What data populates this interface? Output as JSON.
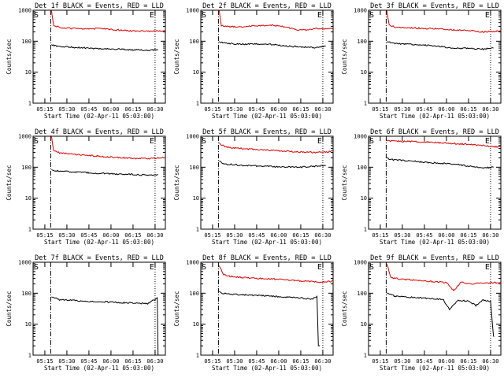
{
  "figure": {
    "y_axis_label": "Counts/sec",
    "x_tick_labels": [
      "05:15",
      "05:30",
      "05:45",
      "06:00",
      "06:15",
      "06:30"
    ],
    "y_tick_labels": [
      "1",
      "10",
      "100",
      "1000"
    ],
    "start_marker": "S",
    "end_marker": "E"
  },
  "colors": {
    "events": "#000000",
    "lld": "#e00000"
  },
  "chart_data": [
    {
      "type": "line",
      "title": "Det 1f BLACK = Events, RED = LLD",
      "xlabel": "Start Time (02-Apr-11 05:03:00)",
      "ylabel": "Counts/sec",
      "y_scale": "log",
      "ylim": [
        1,
        1000
      ],
      "x_range_min": [
        7,
        97
      ],
      "s_min": 19,
      "e_min": 90,
      "series": [
        {
          "name": "Events",
          "color": "#000000",
          "x": [
            19.5,
            25,
            35,
            45,
            55,
            65,
            75,
            85,
            92
          ],
          "y": [
            75,
            68,
            63,
            60,
            57,
            55,
            53,
            51,
            52
          ]
        },
        {
          "name": "LLD",
          "color": "#e00000",
          "x": [
            19.5,
            21,
            25,
            35,
            45,
            55,
            60,
            65,
            75,
            85,
            95,
            97
          ],
          "y": [
            1000,
            330,
            280,
            255,
            250,
            260,
            240,
            230,
            215,
            210,
            215,
            210
          ]
        }
      ]
    },
    {
      "type": "line",
      "title": "Det 2f BLACK = Events, RED = LLD",
      "xlabel": "Start Time (02-Apr-11 05:03:00)",
      "ylabel": "Counts/sec",
      "y_scale": "log",
      "ylim": [
        1,
        1000
      ],
      "x_range_min": [
        7,
        97
      ],
      "s_min": 19,
      "e_min": 90,
      "series": [
        {
          "name": "Events",
          "color": "#000000",
          "x": [
            19.5,
            25,
            35,
            45,
            55,
            65,
            75,
            85,
            92
          ],
          "y": [
            95,
            85,
            80,
            82,
            78,
            70,
            66,
            62,
            70
          ]
        },
        {
          "name": "LLD",
          "color": "#e00000",
          "x": [
            19.5,
            21,
            25,
            35,
            45,
            55,
            65,
            72,
            80,
            85,
            95,
            97
          ],
          "y": [
            1000,
            320,
            300,
            290,
            320,
            330,
            290,
            230,
            230,
            260,
            250,
            260
          ]
        }
      ]
    },
    {
      "type": "line",
      "title": "Det 3f BLACK = Events, RED = LLD",
      "xlabel": "Start Time (02-Apr-11 05:03:00)",
      "ylabel": "Counts/sec",
      "y_scale": "log",
      "ylim": [
        1,
        1000
      ],
      "x_range_min": [
        7,
        97
      ],
      "s_min": 19,
      "e_min": 90,
      "series": [
        {
          "name": "Events",
          "color": "#000000",
          "x": [
            19.5,
            25,
            35,
            45,
            55,
            65,
            75,
            85,
            92
          ],
          "y": [
            95,
            85,
            80,
            75,
            68,
            60,
            58,
            55,
            60
          ]
        },
        {
          "name": "LLD",
          "color": "#e00000",
          "x": [
            19.5,
            21,
            25,
            35,
            45,
            55,
            65,
            75,
            85,
            95,
            97
          ],
          "y": [
            1000,
            330,
            290,
            270,
            260,
            250,
            230,
            220,
            200,
            210,
            215
          ]
        }
      ]
    },
    {
      "type": "line",
      "title": "Det 4f BLACK = Events, RED = LLD",
      "xlabel": "Start Time (02-Apr-11 05:03:00)",
      "ylabel": "Counts/sec",
      "y_scale": "log",
      "ylim": [
        1,
        1000
      ],
      "x_range_min": [
        7,
        97
      ],
      "s_min": 19,
      "e_min": 90,
      "series": [
        {
          "name": "Events",
          "color": "#000000",
          "x": [
            19.5,
            25,
            35,
            45,
            55,
            65,
            75,
            85,
            92
          ],
          "y": [
            80,
            75,
            70,
            66,
            63,
            60,
            58,
            55,
            57
          ]
        },
        {
          "name": "LLD",
          "color": "#e00000",
          "x": [
            19.5,
            21,
            25,
            35,
            45,
            55,
            65,
            75,
            85,
            95,
            97
          ],
          "y": [
            1000,
            340,
            290,
            260,
            240,
            220,
            205,
            195,
            190,
            200,
            205
          ]
        }
      ]
    },
    {
      "type": "line",
      "title": "Det 5f BLACK = Events, RED = LLD",
      "xlabel": "Start Time (02-Apr-11 05:03:00)",
      "ylabel": "Counts/sec",
      "y_scale": "log",
      "ylim": [
        1,
        1000
      ],
      "x_range_min": [
        7,
        97
      ],
      "s_min": 19,
      "e_min": 90,
      "series": [
        {
          "name": "Events",
          "color": "#000000",
          "x": [
            19.5,
            22,
            25,
            35,
            45,
            55,
            65,
            75,
            85,
            92
          ],
          "y": [
            160,
            135,
            125,
            115,
            110,
            105,
            102,
            100,
            108,
            112
          ]
        },
        {
          "name": "LLD",
          "color": "#e00000",
          "x": [
            19.5,
            22,
            25,
            35,
            45,
            55,
            65,
            75,
            85,
            95,
            97
          ],
          "y": [
            600,
            500,
            440,
            400,
            370,
            350,
            330,
            310,
            300,
            320,
            340
          ]
        }
      ]
    },
    {
      "type": "line",
      "title": "Det 6f BLACK = Events, RED = LLD",
      "xlabel": "Start Time (02-Apr-11 05:03:00)",
      "ylabel": "Counts/sec",
      "y_scale": "log",
      "ylim": [
        1,
        1000
      ],
      "x_range_min": [
        7,
        97
      ],
      "s_min": 19,
      "e_min": 90,
      "series": [
        {
          "name": "Events",
          "color": "#000000",
          "x": [
            19.5,
            22,
            25,
            35,
            45,
            55,
            65,
            75,
            85,
            92
          ],
          "y": [
            200,
            180,
            170,
            160,
            145,
            135,
            125,
            110,
            95,
            100
          ]
        },
        {
          "name": "LLD",
          "color": "#e00000",
          "x": [
            19.5,
            22,
            25,
            35,
            45,
            55,
            65,
            75,
            85,
            95,
            97
          ],
          "y": [
            750,
            700,
            690,
            680,
            650,
            620,
            580,
            550,
            500,
            450,
            460
          ]
        }
      ]
    },
    {
      "type": "line",
      "title": "Det 7f BLACK = Events, RED = LLD",
      "xlabel": "Start Time (02-Apr-11 05:03:00)",
      "ylabel": "Counts/sec",
      "y_scale": "log",
      "ylim": [
        1,
        1000
      ],
      "x_range_min": [
        7,
        97
      ],
      "s_min": 19,
      "e_min": 90,
      "series": [
        {
          "name": "Events",
          "color": "#000000",
          "x": [
            19.5,
            25,
            35,
            45,
            55,
            65,
            75,
            85,
            91.5,
            92,
            92.3
          ],
          "y": [
            75,
            62,
            58,
            55,
            53,
            50,
            48,
            46,
            70,
            1,
            1
          ]
        }
      ]
    },
    {
      "type": "line",
      "title": "Det 8f BLACK = Events, RED = LLD",
      "xlabel": "Start Time (02-Apr-11 05:03:00)",
      "ylabel": "Counts/sec",
      "y_scale": "log",
      "ylim": [
        1,
        1000
      ],
      "x_range_min": [
        7,
        97
      ],
      "s_min": 19,
      "e_min": 90,
      "series": [
        {
          "name": "Events",
          "color": "#000000",
          "x": [
            19.5,
            22,
            25,
            35,
            45,
            55,
            65,
            75,
            83,
            86,
            87,
            88
          ],
          "y": [
            110,
            100,
            95,
            90,
            85,
            80,
            75,
            70,
            65,
            80,
            2,
            2
          ]
        },
        {
          "name": "LLD",
          "color": "#e00000",
          "x": [
            19.5,
            22,
            25,
            35,
            45,
            55,
            65,
            75,
            85,
            95,
            97
          ],
          "y": [
            800,
            420,
            360,
            320,
            300,
            290,
            270,
            250,
            230,
            240,
            250
          ]
        }
      ]
    },
    {
      "type": "line",
      "title": "Det 9f BLACK = Events, RED = LLD",
      "xlabel": "Start Time (02-Apr-11 05:03:00)",
      "ylabel": "Counts/sec",
      "y_scale": "log",
      "ylim": [
        1,
        1000
      ],
      "x_range_min": [
        7,
        97
      ],
      "s_min": 19,
      "e_min": 90,
      "series": [
        {
          "name": "Events",
          "color": "#000000",
          "x": [
            19.5,
            22,
            25,
            35,
            45,
            55,
            58,
            62,
            68,
            75,
            80,
            85,
            90,
            92,
            92.5
          ],
          "y": [
            100,
            90,
            80,
            75,
            70,
            65,
            60,
            30,
            60,
            55,
            40,
            60,
            55,
            4,
            4
          ]
        },
        {
          "name": "LLD",
          "color": "#e00000",
          "x": [
            19.5,
            22,
            25,
            35,
            45,
            55,
            60,
            65,
            70,
            75,
            85,
            95,
            97
          ],
          "y": [
            900,
            330,
            300,
            270,
            250,
            230,
            220,
            120,
            230,
            200,
            210,
            220,
            230
          ]
        }
      ]
    }
  ]
}
